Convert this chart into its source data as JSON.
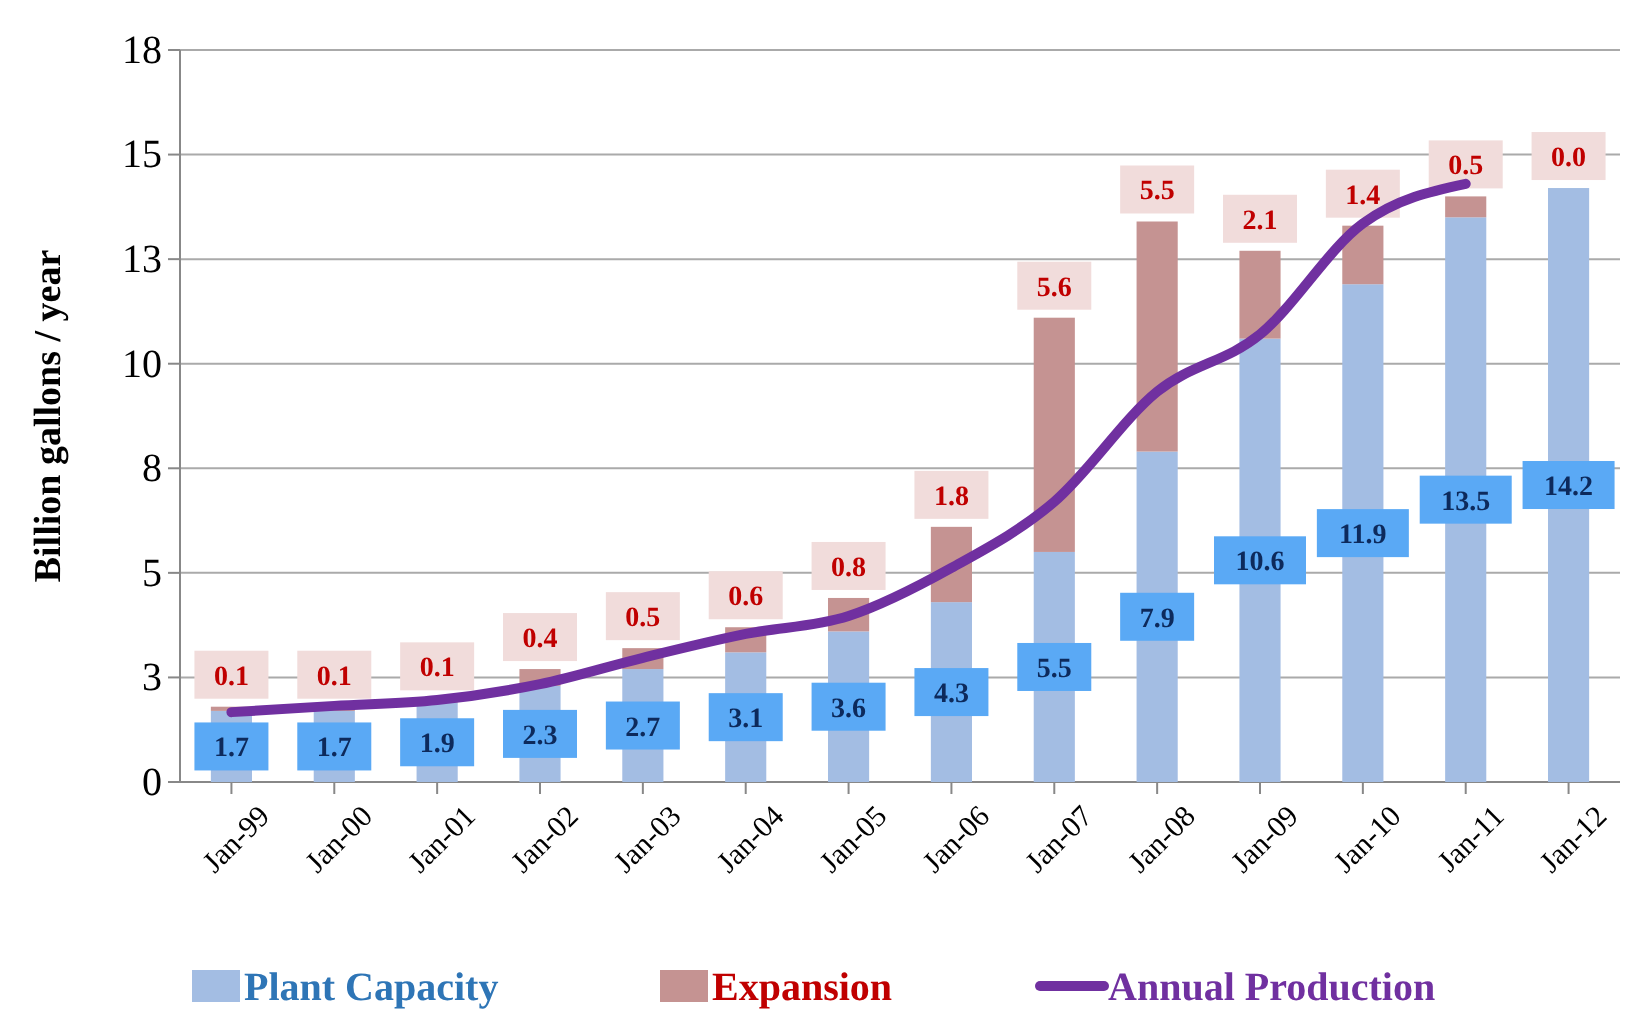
{
  "chart_data": {
    "type": "bar",
    "stacked": true,
    "ylabel": "Billion gallons / year",
    "categories": [
      "Jan-99",
      "Jan-00",
      "Jan-01",
      "Jan-02",
      "Jan-03",
      "Jan-04",
      "Jan-05",
      "Jan-06",
      "Jan-07",
      "Jan-08",
      "Jan-09",
      "Jan-10",
      "Jan-11",
      "Jan-12"
    ],
    "series": [
      {
        "name": "Plant Capacity",
        "color": "#a3bde3",
        "values": [
          1.7,
          1.7,
          1.9,
          2.3,
          2.7,
          3.1,
          3.6,
          4.3,
          5.5,
          7.9,
          10.6,
          11.9,
          13.5,
          14.2
        ],
        "value_labels": [
          "1.7",
          "1.7",
          "1.9",
          "2.3",
          "2.7",
          "3.1",
          "3.6",
          "4.3",
          "5.5",
          "7.9",
          "10.6",
          "11.9",
          "13.5",
          "14.2"
        ]
      },
      {
        "name": "Expansion",
        "color": "#c59392",
        "values": [
          0.1,
          0.1,
          0.1,
          0.4,
          0.5,
          0.6,
          0.8,
          1.8,
          5.6,
          5.5,
          2.1,
          1.4,
          0.5,
          0.0
        ],
        "value_labels": [
          "0.1",
          "0.1",
          "0.1",
          "0.4",
          "0.5",
          "0.6",
          "0.8",
          "1.8",
          "5.6",
          "5.5",
          "2.1",
          "1.4",
          "0.5",
          "0.0"
        ]
      },
      {
        "name": "Annual Production",
        "type": "line",
        "color": "#7030a0",
        "values": [
          1.67,
          1.82,
          1.96,
          2.34,
          2.97,
          3.54,
          3.97,
          5.12,
          6.7,
          9.33,
          10.7,
          13.35,
          14.3,
          null
        ]
      }
    ],
    "ylim": [
      0,
      17.5
    ],
    "yticks": [
      0,
      {
        "value": 2.5,
        "label": "3"
      },
      5,
      {
        "value": 7.5,
        "label": "8"
      },
      10,
      {
        "value": 12.5,
        "label": "13"
      },
      15,
      {
        "value": 17.5,
        "label": "18"
      }
    ],
    "grid": "y",
    "legend": "bottom",
    "marker": "none"
  }
}
